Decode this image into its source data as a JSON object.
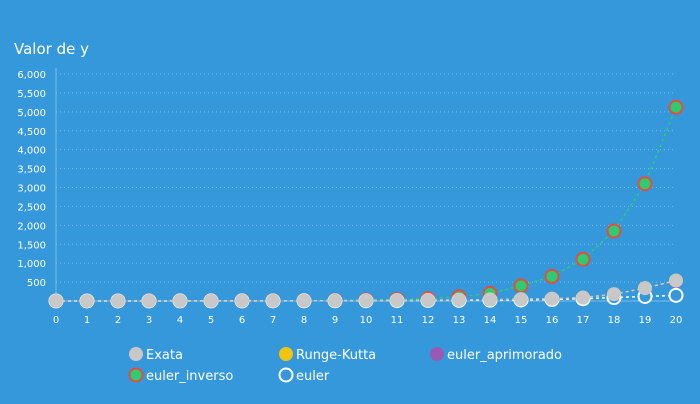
{
  "colors": {
    "background": "#3498db",
    "text": "#ffffff",
    "grid": "#7fbbe9",
    "exata_fill": "#c8c8c8",
    "runge_kutta_fill": "#f1c40f",
    "euler_aprimorado_fill": "#9b59b6",
    "euler_inverso_fill": "#2ecc71",
    "euler_inverso_stroke": "#e74c3c",
    "euler_fill": "#3498db",
    "euler_stroke": "#ffffff"
  },
  "chart_data": {
    "type": "line",
    "ylabel": "Valor de y",
    "x": [
      0,
      1,
      2,
      3,
      4,
      5,
      6,
      7,
      8,
      9,
      10,
      11,
      12,
      13,
      14,
      15,
      16,
      17,
      18,
      19,
      20
    ],
    "ylim": [
      0,
      6000
    ],
    "yticks": [
      "500",
      "1,000",
      "1,500",
      "2,000",
      "2,500",
      "3,000",
      "3,500",
      "4,000",
      "4,500",
      "5,000",
      "5,500",
      "6,000"
    ],
    "ytick_values": [
      500,
      1000,
      1500,
      2000,
      2500,
      3000,
      3500,
      4000,
      4500,
      5000,
      5500,
      6000
    ],
    "grid": true,
    "legend_position": "bottom",
    "series": [
      {
        "name": "Exata",
        "values": [
          1,
          1,
          1,
          2,
          2,
          3,
          4,
          5,
          7,
          9,
          12,
          15,
          20,
          27,
          35,
          46,
          60,
          90,
          180,
          340,
          540
        ]
      },
      {
        "name": "Runge-Kutta",
        "values": [
          1,
          1,
          1,
          2,
          2,
          3,
          4,
          5,
          7,
          9,
          12,
          15,
          20,
          27,
          35,
          46,
          60,
          90,
          180,
          340,
          540
        ]
      },
      {
        "name": "euler_aprimorado",
        "values": [
          1,
          1,
          1,
          2,
          2,
          3,
          4,
          5,
          7,
          9,
          12,
          15,
          20,
          27,
          35,
          46,
          60,
          90,
          175,
          330,
          520
        ]
      },
      {
        "name": "euler_inverso",
        "values": [
          1,
          1,
          2,
          3,
          4,
          5,
          7,
          9,
          12,
          17,
          25,
          40,
          60,
          110,
          200,
          400,
          650,
          1100,
          1850,
          3100,
          5120
        ]
      },
      {
        "name": "euler",
        "values": [
          1,
          1,
          1,
          1,
          2,
          2,
          3,
          4,
          5,
          6,
          8,
          10,
          13,
          17,
          22,
          28,
          40,
          60,
          90,
          120,
          150
        ]
      }
    ]
  }
}
